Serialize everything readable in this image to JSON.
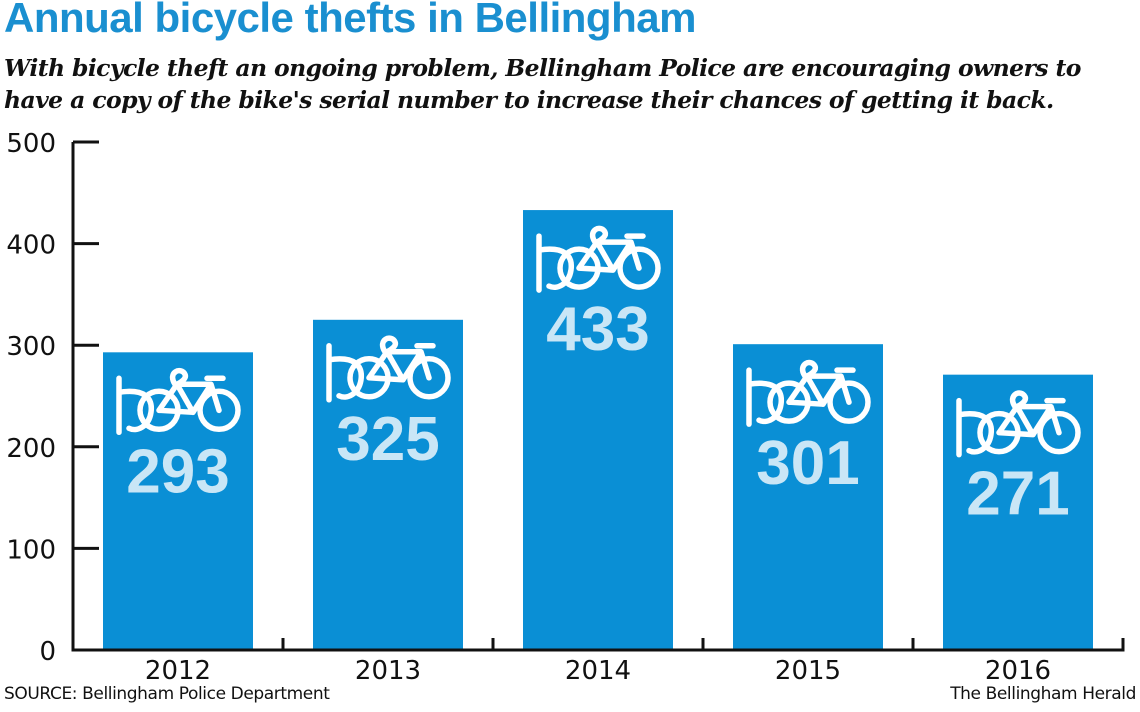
{
  "title": "Annual bicycle thefts in Bellingham",
  "subtitle": [
    "With bicycle theft an ongoing problem, Bellingham Police are encouraging owners to",
    "have a copy of the bike's serial number to increase their chances of getting it back."
  ],
  "source": "SOURCE: Bellingham Police Department",
  "credit": "The Bellingham Herald",
  "colors": {
    "title": "#1a8fd0",
    "bar": "#0a8fd5",
    "value_label": "#c9e6f6",
    "icon": "#ffffff",
    "axis": "#111111"
  },
  "chart_data": {
    "type": "bar",
    "title": "Annual bicycle thefts in Bellingham",
    "xlabel": "",
    "ylabel": "",
    "categories": [
      "2012",
      "2013",
      "2014",
      "2015",
      "2016"
    ],
    "values": [
      293,
      325,
      433,
      301,
      271
    ],
    "value_labels": [
      "293",
      "325",
      "433",
      "301",
      "271"
    ],
    "yticks": [
      0,
      100,
      200,
      300,
      400,
      500
    ],
    "ytick_labels": [
      "0",
      "100",
      "200",
      "300",
      "400",
      "500"
    ],
    "ylim": [
      0,
      500
    ],
    "grid": false,
    "legend": "none",
    "bar_icon": "bicycle-icon"
  }
}
